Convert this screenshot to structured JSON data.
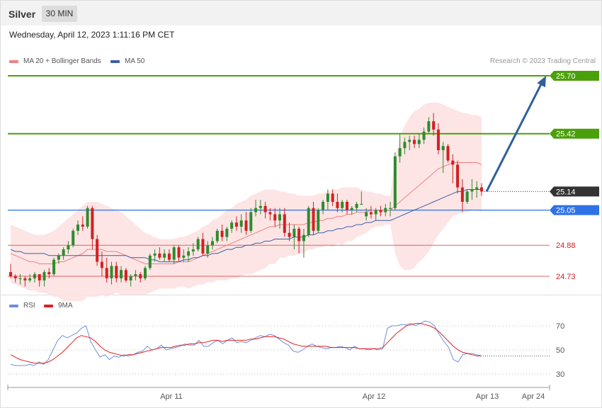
{
  "header": {
    "instrument": "Silver",
    "timeframe": "30 MIN",
    "datetime": "Wednesday, April 12, 2023 1:11:16 PM CET",
    "credit": "Research © 2023 Trading Central"
  },
  "legend": {
    "ma20_label": "MA 20 + Bollinger Bands",
    "ma50_label": "MA 50",
    "rsi_label": "RSI",
    "rsi_ma_label": "9MA"
  },
  "colors": {
    "bull": "#2e8b2e",
    "bear": "#d42020",
    "band_fill": "#fde0e0",
    "ma20": "#f08080",
    "ma50": "#3a5ea8",
    "resistance": "#4aa00a",
    "pivot": "#2f72e8",
    "support": "#e26060",
    "arrow": "#2f5f9e",
    "rsi": "#6f8fdc",
    "rsi_ma": "#e02020"
  },
  "chart_data": [
    {
      "type": "line",
      "name": "price",
      "levels": [
        {
          "value": 25.7,
          "label": "25.70",
          "kind": "resistance"
        },
        {
          "value": 25.42,
          "label": "25.42",
          "kind": "resistance"
        },
        {
          "value": 25.14,
          "label": "25.14",
          "kind": "last"
        },
        {
          "value": 25.05,
          "label": "25.05",
          "kind": "pivot"
        },
        {
          "value": 24.88,
          "label": "24.88",
          "kind": "support"
        },
        {
          "value": 24.73,
          "label": "24.73",
          "kind": "support"
        }
      ],
      "candles": [
        [
          24.75,
          24.79,
          24.72,
          24.73
        ],
        [
          24.73,
          24.74,
          24.7,
          24.72
        ],
        [
          24.72,
          24.74,
          24.69,
          24.72
        ],
        [
          24.72,
          24.73,
          24.68,
          24.71
        ],
        [
          24.71,
          24.74,
          24.7,
          24.72
        ],
        [
          24.72,
          24.75,
          24.7,
          24.74
        ],
        [
          24.74,
          24.74,
          24.68,
          24.71
        ],
        [
          24.71,
          24.76,
          24.68,
          24.75
        ],
        [
          24.75,
          24.77,
          24.72,
          24.74
        ],
        [
          24.74,
          24.82,
          24.73,
          24.81
        ],
        [
          24.81,
          24.84,
          24.79,
          24.83
        ],
        [
          24.83,
          24.87,
          24.81,
          24.86
        ],
        [
          24.86,
          24.9,
          24.84,
          24.88
        ],
        [
          24.88,
          24.96,
          24.87,
          24.95
        ],
        [
          24.95,
          25.0,
          24.93,
          24.98
        ],
        [
          24.98,
          25.02,
          24.95,
          24.97
        ],
        [
          24.97,
          25.07,
          24.96,
          25.06
        ],
        [
          25.06,
          25.07,
          24.86,
          24.91
        ],
        [
          24.91,
          24.93,
          24.78,
          24.8
        ],
        [
          24.8,
          24.85,
          24.73,
          24.77
        ],
        [
          24.77,
          24.82,
          24.7,
          24.72
        ],
        [
          24.72,
          24.8,
          24.69,
          24.78
        ],
        [
          24.78,
          24.8,
          24.7,
          24.72
        ],
        [
          24.72,
          24.78,
          24.7,
          24.76
        ],
        [
          24.76,
          24.77,
          24.7,
          24.71
        ],
        [
          24.71,
          24.74,
          24.68,
          24.73
        ],
        [
          24.73,
          24.76,
          24.71,
          24.74
        ],
        [
          24.74,
          24.75,
          24.7,
          24.72
        ],
        [
          24.72,
          24.78,
          24.71,
          24.77
        ],
        [
          24.77,
          24.84,
          24.76,
          24.83
        ],
        [
          24.83,
          24.86,
          24.8,
          24.84
        ],
        [
          24.84,
          24.87,
          24.81,
          24.82
        ],
        [
          24.82,
          24.86,
          24.8,
          24.84
        ],
        [
          24.84,
          24.86,
          24.8,
          24.81
        ],
        [
          24.81,
          24.88,
          24.79,
          24.87
        ],
        [
          24.87,
          24.88,
          24.8,
          24.82
        ],
        [
          24.82,
          24.86,
          24.8,
          24.83
        ],
        [
          24.83,
          24.87,
          24.8,
          24.85
        ],
        [
          24.85,
          24.89,
          24.83,
          24.86
        ],
        [
          24.86,
          24.92,
          24.85,
          24.91
        ],
        [
          24.91,
          24.94,
          24.83,
          24.84
        ],
        [
          24.84,
          24.9,
          24.82,
          24.88
        ],
        [
          24.88,
          24.92,
          24.86,
          24.9
        ],
        [
          24.9,
          24.96,
          24.89,
          24.95
        ],
        [
          24.95,
          24.98,
          24.9,
          24.92
        ],
        [
          24.92,
          24.97,
          24.9,
          24.96
        ],
        [
          24.96,
          25.0,
          24.94,
          24.99
        ],
        [
          24.99,
          25.02,
          24.95,
          24.97
        ],
        [
          24.97,
          25.03,
          24.94,
          25.0
        ],
        [
          25.0,
          25.04,
          24.93,
          24.95
        ],
        [
          24.95,
          25.06,
          24.94,
          25.04
        ],
        [
          25.04,
          25.1,
          25.02,
          25.06
        ],
        [
          25.06,
          25.1,
          25.03,
          25.07
        ],
        [
          25.07,
          25.09,
          25.01,
          25.04
        ],
        [
          25.04,
          25.06,
          25.0,
          25.03
        ],
        [
          25.03,
          25.06,
          24.97,
          25.0
        ],
        [
          25.0,
          25.06,
          24.96,
          25.03
        ],
        [
          25.03,
          25.06,
          24.92,
          24.94
        ],
        [
          24.94,
          24.99,
          24.9,
          24.92
        ],
        [
          24.92,
          24.98,
          24.86,
          24.96
        ],
        [
          24.96,
          24.97,
          24.84,
          24.9
        ],
        [
          24.9,
          24.96,
          24.82,
          24.93
        ],
        [
          24.93,
          25.07,
          24.92,
          25.06
        ],
        [
          25.06,
          25.09,
          24.93,
          24.95
        ],
        [
          24.95,
          25.06,
          24.94,
          25.05
        ],
        [
          25.05,
          25.1,
          25.03,
          25.09
        ],
        [
          25.09,
          25.15,
          25.05,
          25.13
        ],
        [
          25.13,
          25.15,
          25.07,
          25.09
        ],
        [
          25.09,
          25.13,
          25.04,
          25.06
        ],
        [
          25.06,
          25.1,
          25.04,
          25.09
        ],
        [
          25.09,
          25.1,
          25.03,
          25.05
        ],
        [
          25.05,
          25.07,
          25.03,
          25.06
        ],
        [
          25.06,
          25.09,
          25.04,
          25.08
        ],
        [
          25.08,
          25.14,
          25.08,
          25.08
        ],
        [
          25.02,
          25.06,
          25.0,
          25.04
        ],
        [
          25.04,
          25.07,
          25.01,
          25.03
        ],
        [
          25.03,
          25.06,
          25.0,
          25.05
        ],
        [
          25.05,
          25.07,
          25.02,
          25.04
        ],
        [
          25.04,
          25.08,
          25.02,
          25.06
        ],
        [
          25.06,
          25.09,
          25.02,
          25.06
        ],
        [
          25.06,
          25.33,
          25.05,
          25.31
        ],
        [
          25.31,
          25.42,
          25.28,
          25.35
        ],
        [
          25.35,
          25.4,
          25.32,
          25.38
        ],
        [
          25.38,
          25.41,
          25.34,
          25.39
        ],
        [
          25.39,
          25.41,
          25.35,
          25.37
        ],
        [
          25.37,
          25.42,
          25.35,
          25.39
        ],
        [
          25.39,
          25.45,
          25.37,
          25.43
        ],
        [
          25.43,
          25.5,
          25.42,
          25.48
        ],
        [
          25.48,
          25.52,
          25.41,
          25.44
        ],
        [
          25.44,
          25.47,
          25.32,
          25.34
        ],
        [
          25.34,
          25.38,
          25.23,
          25.36
        ],
        [
          25.36,
          25.37,
          25.28,
          25.29
        ],
        [
          25.29,
          25.32,
          25.18,
          25.27
        ],
        [
          25.27,
          25.29,
          25.13,
          25.16
        ],
        [
          25.16,
          25.2,
          25.04,
          25.09
        ],
        [
          25.09,
          25.15,
          25.08,
          25.14
        ],
        [
          25.14,
          25.2,
          25.1,
          25.15
        ],
        [
          25.15,
          25.19,
          25.11,
          25.16
        ],
        [
          25.16,
          25.18,
          25.12,
          25.14
        ]
      ],
      "ma20": [
        24.84,
        24.83,
        24.82,
        24.81,
        24.8,
        24.8,
        24.79,
        24.79,
        24.79,
        24.79,
        24.8,
        24.8,
        24.81,
        24.82,
        24.83,
        24.84,
        24.86,
        24.86,
        24.86,
        24.86,
        24.85,
        24.85,
        24.85,
        24.84,
        24.83,
        24.82,
        24.81,
        24.8,
        24.79,
        24.79,
        24.79,
        24.79,
        24.79,
        24.79,
        24.79,
        24.8,
        24.8,
        24.8,
        24.81,
        24.82,
        24.83,
        24.84,
        24.85,
        24.86,
        24.87,
        24.88,
        24.89,
        24.9,
        24.91,
        24.92,
        24.93,
        24.94,
        24.95,
        24.96,
        24.97,
        24.97,
        24.98,
        24.98,
        24.98,
        24.98,
        24.98,
        24.98,
        24.99,
        24.99,
        25.0,
        25.0,
        25.01,
        25.01,
        25.02,
        25.02,
        25.03,
        25.03,
        25.04,
        25.04,
        25.04,
        25.05,
        25.05,
        25.05,
        25.05,
        25.05,
        25.07,
        25.09,
        25.11,
        25.13,
        25.15,
        25.17,
        25.19,
        25.21,
        25.23,
        25.25,
        25.26,
        25.27,
        25.28,
        25.28,
        25.28,
        25.28,
        25.28,
        25.28,
        25.27
      ],
      "bb_upper": [
        24.98,
        24.97,
        24.96,
        24.95,
        24.94,
        24.93,
        24.93,
        24.93,
        24.94,
        24.95,
        24.97,
        24.99,
        25.01,
        25.03,
        25.05,
        25.07,
        25.09,
        25.09,
        25.09,
        25.08,
        25.07,
        25.06,
        25.05,
        25.04,
        25.02,
        25.0,
        24.98,
        24.96,
        24.94,
        24.93,
        24.92,
        24.91,
        24.91,
        24.91,
        24.91,
        24.92,
        24.92,
        24.93,
        24.94,
        24.95,
        24.97,
        24.98,
        25.0,
        25.01,
        25.03,
        25.05,
        25.06,
        25.08,
        25.09,
        25.1,
        25.12,
        25.13,
        25.14,
        25.15,
        25.15,
        25.15,
        25.14,
        25.14,
        25.13,
        25.13,
        25.12,
        25.12,
        25.12,
        25.12,
        25.13,
        25.13,
        25.14,
        25.15,
        25.15,
        25.16,
        25.16,
        25.16,
        25.16,
        25.15,
        25.14,
        25.14,
        25.13,
        25.13,
        25.12,
        25.12,
        25.3,
        25.4,
        25.46,
        25.5,
        25.53,
        25.54,
        25.56,
        25.57,
        25.57,
        25.57,
        25.56,
        25.55,
        25.54,
        25.53,
        25.52,
        25.52,
        25.51,
        25.51,
        25.5
      ],
      "bb_lower": [
        24.7,
        24.69,
        24.68,
        24.67,
        24.66,
        24.66,
        24.65,
        24.65,
        24.64,
        24.63,
        24.63,
        24.61,
        24.61,
        24.61,
        24.61,
        24.61,
        24.63,
        24.63,
        24.63,
        24.64,
        24.63,
        24.64,
        24.65,
        24.64,
        24.64,
        24.64,
        24.64,
        24.64,
        24.64,
        24.65,
        24.66,
        24.67,
        24.67,
        24.67,
        24.67,
        24.68,
        24.68,
        24.67,
        24.68,
        24.69,
        24.69,
        24.7,
        24.7,
        24.71,
        24.71,
        24.71,
        24.72,
        24.72,
        24.73,
        24.74,
        24.74,
        24.75,
        24.76,
        24.77,
        24.79,
        24.79,
        24.82,
        24.82,
        24.83,
        24.83,
        24.84,
        24.84,
        24.86,
        24.86,
        24.87,
        24.87,
        24.88,
        24.87,
        24.89,
        24.88,
        24.9,
        24.9,
        24.92,
        24.93,
        24.94,
        24.96,
        24.97,
        24.97,
        24.98,
        24.98,
        24.84,
        24.78,
        24.76,
        24.76,
        24.77,
        24.8,
        24.82,
        24.85,
        24.89,
        24.93,
        24.96,
        24.99,
        25.02,
        25.03,
        25.04,
        25.04,
        25.05,
        25.05,
        25.04
      ],
      "ma50": [
        24.86,
        24.85,
        24.85,
        24.84,
        24.84,
        24.84,
        24.84,
        24.84,
        24.83,
        24.83,
        24.83,
        24.83,
        24.83,
        24.83,
        24.83,
        24.83,
        24.83,
        24.83,
        24.83,
        24.83,
        24.83,
        24.83,
        24.83,
        24.83,
        24.83,
        24.82,
        24.82,
        24.82,
        24.82,
        24.81,
        24.81,
        24.8,
        24.8,
        24.8,
        24.8,
        24.8,
        24.81,
        24.81,
        24.82,
        24.82,
        24.83,
        24.83,
        24.84,
        24.84,
        24.85,
        24.86,
        24.86,
        24.87,
        24.87,
        24.88,
        24.88,
        24.89,
        24.89,
        24.9,
        24.9,
        24.91,
        24.91,
        24.91,
        24.91,
        24.92,
        24.92,
        24.92,
        24.93,
        24.93,
        24.94,
        24.94,
        24.95,
        24.95,
        24.96,
        24.96,
        24.97,
        24.97,
        24.98,
        24.98,
        24.99,
        24.99,
        25.0,
        25.0,
        25.0,
        25.0,
        25.01,
        25.02,
        25.03,
        25.04,
        25.05,
        25.06,
        25.07,
        25.08,
        25.09,
        25.1,
        25.11,
        25.12,
        25.13,
        25.14,
        25.14,
        25.15,
        25.15,
        25.15,
        25.15
      ],
      "forecast_target": 25.7
    },
    {
      "type": "line",
      "name": "rsi",
      "levels": [
        70,
        50,
        30
      ],
      "rsi": [
        38,
        37,
        37,
        37,
        38,
        37,
        40,
        38,
        42,
        50,
        58,
        62,
        60,
        62,
        64,
        68,
        70,
        57,
        50,
        44,
        46,
        42,
        45,
        44,
        46,
        45,
        46,
        48,
        49,
        53,
        50,
        51,
        54,
        50,
        51,
        52,
        53,
        55,
        54,
        54,
        58,
        53,
        53,
        56,
        58,
        55,
        58,
        60,
        56,
        57,
        56,
        58,
        60,
        62,
        61,
        63,
        62,
        59,
        56,
        54,
        49,
        48,
        50,
        53,
        55,
        53,
        52,
        51,
        52,
        52,
        53,
        52,
        50,
        53,
        51,
        51,
        50,
        51,
        50,
        51,
        68,
        70,
        70,
        71,
        71,
        72,
        70,
        72,
        74,
        73,
        70,
        63,
        57,
        52,
        42,
        40,
        46,
        47,
        47,
        46,
        45
      ],
      "rsi_ma": [
        46,
        44,
        42,
        41,
        40,
        39,
        39,
        39,
        40,
        42,
        45,
        48,
        52,
        56,
        60,
        62,
        61,
        60,
        57,
        53,
        50,
        48,
        47,
        46,
        45,
        46,
        46,
        47,
        48,
        49,
        50,
        51,
        52,
        52,
        52,
        53,
        54,
        54,
        55,
        55,
        56,
        56,
        57,
        58,
        58,
        57,
        58,
        58,
        58,
        58,
        58,
        59,
        59,
        60,
        61,
        61,
        61,
        60,
        59,
        57,
        55,
        54,
        53,
        53,
        53,
        53,
        53,
        53,
        52,
        52,
        52,
        52,
        52,
        52,
        51,
        51,
        51,
        51,
        51,
        52,
        56,
        60,
        64,
        67,
        70,
        71,
        72,
        72,
        71,
        70,
        68,
        65,
        61,
        57,
        53,
        50,
        48,
        47,
        46,
        45,
        45
      ]
    }
  ],
  "xaxis": {
    "ticks": [
      "Apr 11",
      "Apr 12",
      "Apr 13",
      "Apr 24"
    ]
  }
}
